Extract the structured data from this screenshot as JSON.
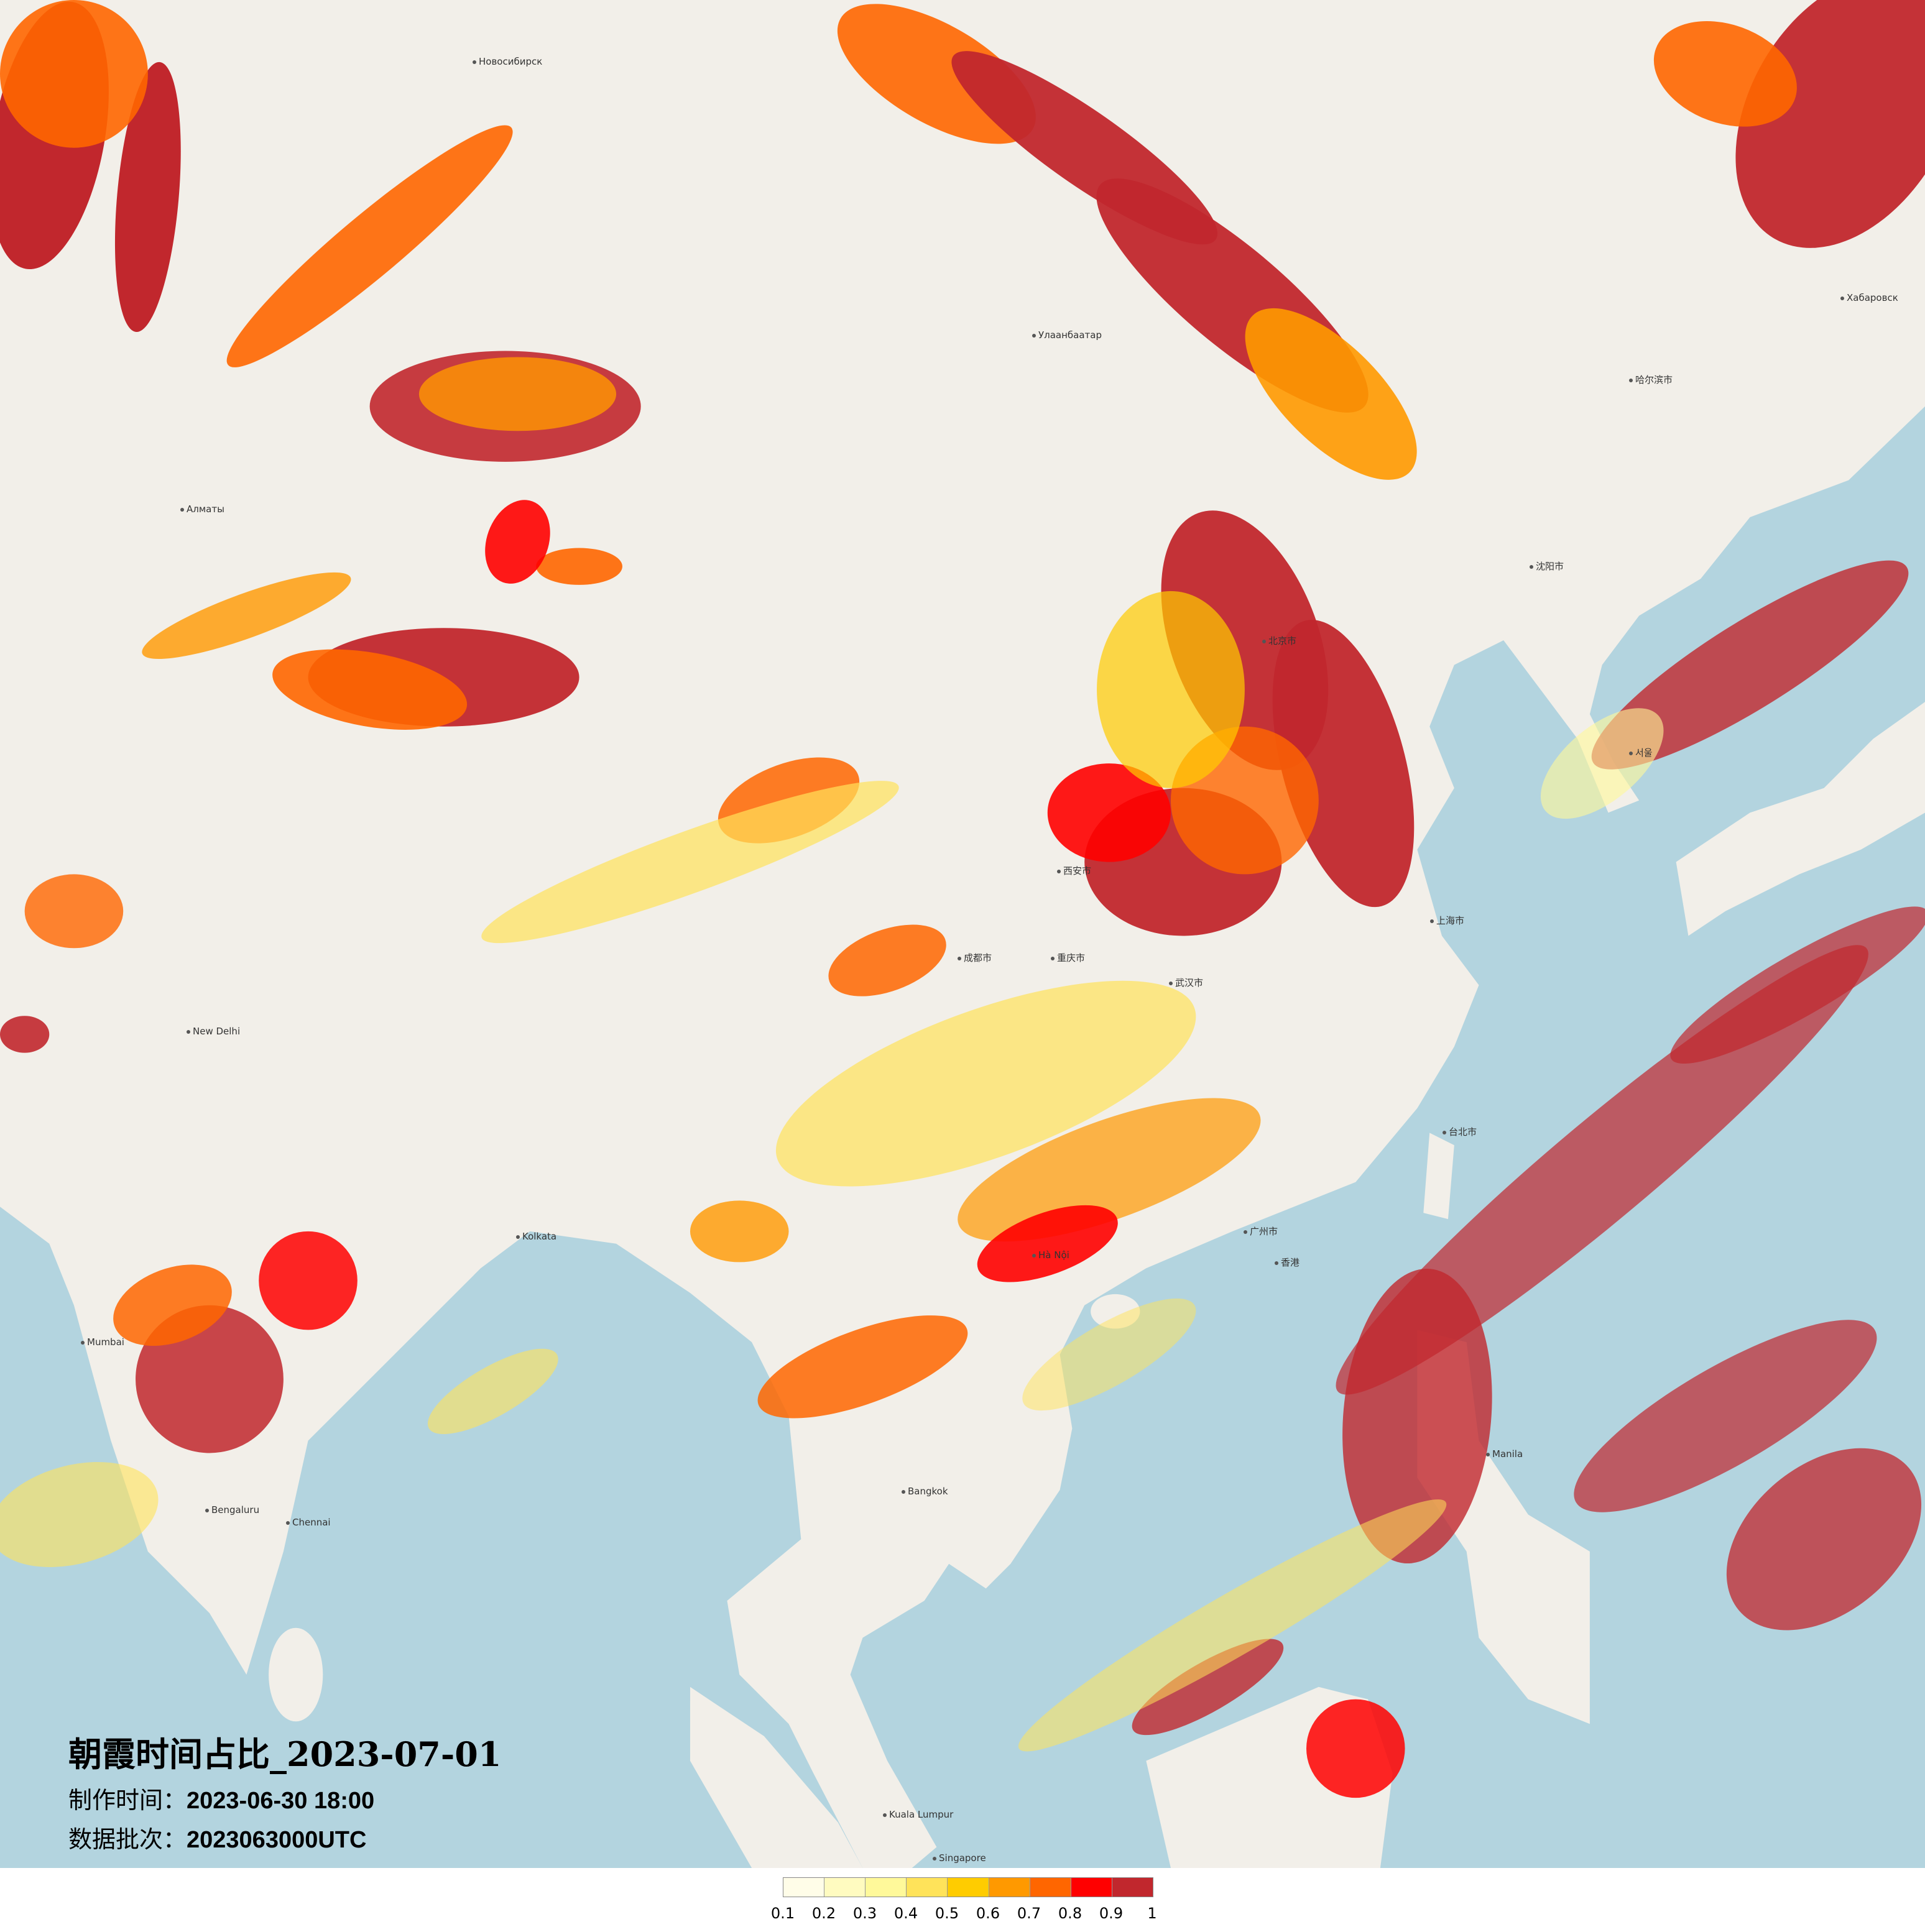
{
  "title": "朝霞时间占比_2023-07-01",
  "production_time": {
    "label": "制作时间：",
    "value": "2023-06-30 18:00"
  },
  "data_batch": {
    "label": "数据批次：",
    "value": "2023063000UTC"
  },
  "legend": {
    "colors": [
      "#fffde8",
      "#fffbc0",
      "#fff99a",
      "#ffe35a",
      "#ffcc00",
      "#ff9900",
      "#ff6600",
      "#ff0000",
      "#c1272d"
    ],
    "labels": [
      "0.1",
      "0.2",
      "0.3",
      "0.4",
      "0.5",
      "0.6",
      "0.7",
      "0.8",
      "0.9",
      "1"
    ]
  },
  "map": {
    "land_color": "#f2efe9",
    "sea_color": "#b3d4df",
    "labels": [
      "Улаанбаатар",
      "北京市",
      "上海市",
      "Новосибирск",
      "Алматы",
      "New Delhi",
      "Kolkata",
      "Mumbai",
      "Bengaluru",
      "Chennai",
      "Hà Nội",
      "Bangkok",
      "Manila",
      "Singapore",
      "Kuala Lumpur",
      "Хабаровск",
      "서울",
      "台北市",
      "香港",
      "重庆市",
      "成都市",
      "广州市",
      "武汉市",
      "哈尔滨市",
      "沈阳市",
      "西安市"
    ]
  }
}
